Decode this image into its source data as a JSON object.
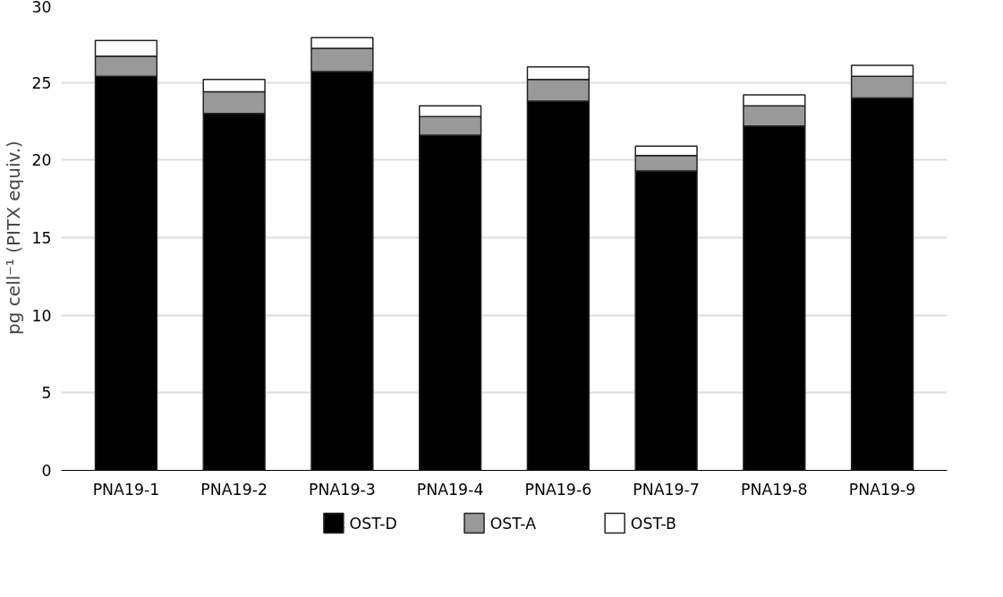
{
  "chart_data": {
    "type": "bar",
    "stacked": true,
    "ylabel": "pg cell⁻¹ (PITX equiv.)",
    "categories": [
      "PNA19-1",
      "PNA19-2",
      "PNA19-3",
      "PNA19-4",
      "PNA19-6",
      "PNA19-7",
      "PNA19-8",
      "PNA19-9"
    ],
    "series": [
      {
        "name": "OST-D",
        "color": "#000000",
        "values": [
          25.4,
          23.0,
          25.7,
          21.6,
          23.8,
          19.3,
          22.2,
          24.0
        ]
      },
      {
        "name": "OST-A",
        "color": "#999999",
        "values": [
          1.3,
          1.4,
          1.5,
          1.2,
          1.4,
          1.0,
          1.3,
          1.4
        ]
      },
      {
        "name": "OST-B",
        "color": "#ffffff",
        "values": [
          1.0,
          0.8,
          0.7,
          0.7,
          0.8,
          0.6,
          0.7,
          0.7
        ]
      }
    ],
    "ylim": [
      0,
      30
    ],
    "yticks": [
      0,
      5,
      10,
      15,
      20,
      25,
      30
    ],
    "grid": "y",
    "legend": "bottom"
  }
}
